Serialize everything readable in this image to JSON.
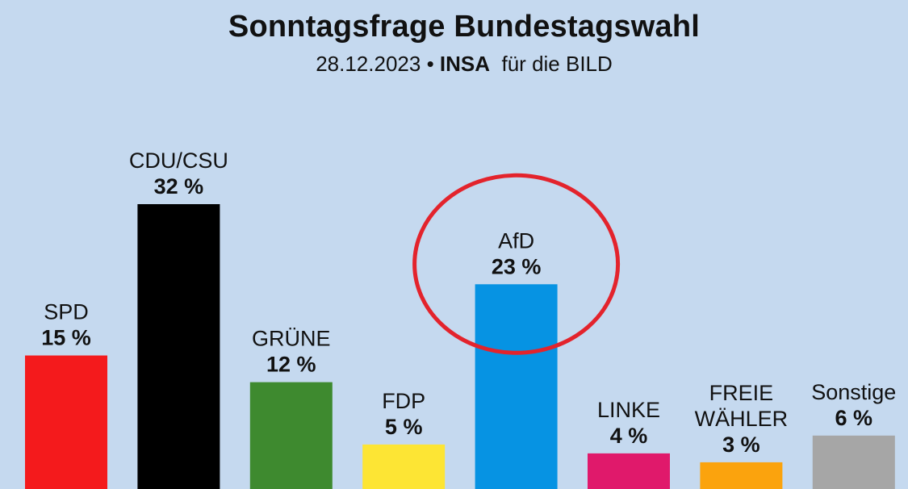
{
  "chart_data": {
    "type": "bar",
    "title": "Sonntagsfrage Bundestagswahl",
    "subtitle": {
      "date": "28.12.2023",
      "separator": "•",
      "institute": "INSA",
      "client": "für die BILD"
    },
    "categories": [
      [
        "SPD"
      ],
      [
        "CDU/CSU"
      ],
      [
        "GRÜNE"
      ],
      [
        "FDP"
      ],
      [
        "AfD"
      ],
      [
        "LINKE"
      ],
      [
        "FREIE",
        "WÄHLER"
      ],
      [
        "Sonstige"
      ]
    ],
    "values": [
      15,
      32,
      12,
      5,
      23,
      4,
      3,
      6
    ],
    "value_labels": [
      "15 %",
      "32 %",
      "12 %",
      "5 %",
      "23 %",
      "4 %",
      "3 %",
      "6 %"
    ],
    "colors": [
      "#f41a1c",
      "#000000",
      "#3e8a2f",
      "#fde534",
      "#0693e3",
      "#e0196b",
      "#fba30d",
      "#a6a6a6"
    ],
    "highlight": {
      "category": "AfD",
      "shape": "ellipse",
      "color": "#e3232c"
    },
    "xlabel": "",
    "ylabel": "",
    "unit": "%"
  }
}
